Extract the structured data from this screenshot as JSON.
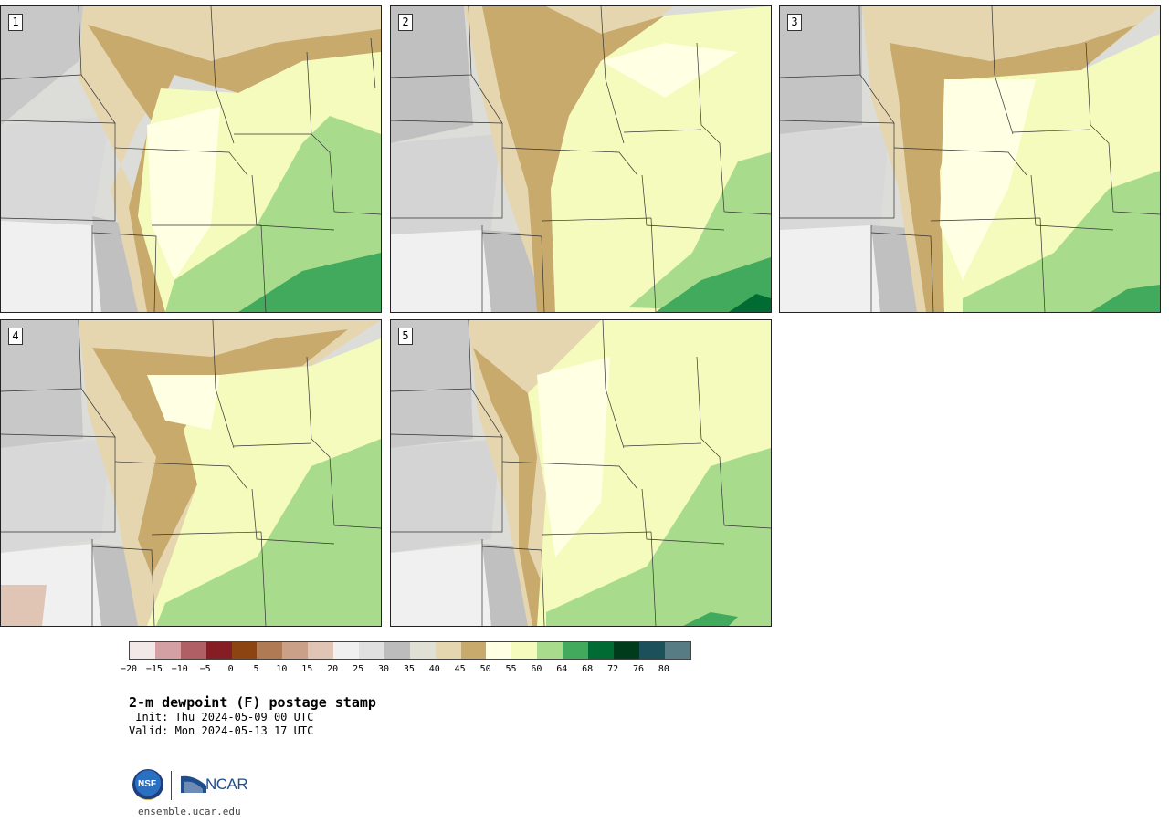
{
  "panels": [
    {
      "label": "1"
    },
    {
      "label": "2"
    },
    {
      "label": "3"
    },
    {
      "label": "4"
    },
    {
      "label": "5"
    }
  ],
  "colorbar": {
    "colors": [
      "#f3e8e8",
      "#d4a0a4",
      "#b06064",
      "#861c24",
      "#8c4412",
      "#b07a54",
      "#caa088",
      "#e0c4b4",
      "#f0f0f0",
      "#e0e0e0",
      "#bcbcbc",
      "#e0e0d4",
      "#e6d6b0",
      "#c8aa6c",
      "#ffffe4",
      "#f4fbbc",
      "#a8dc8c",
      "#42aa5c",
      "#006c34",
      "#003c1c",
      "#1c505a",
      "#587c84"
    ],
    "tick_labels": [
      "−20",
      "−15",
      "−10",
      "−5",
      "0",
      "5",
      "10",
      "15",
      "20",
      "25",
      "30",
      "35",
      "40",
      "45",
      "50",
      "55",
      "60",
      "64",
      "68",
      "72",
      "76",
      "80"
    ]
  },
  "title": "2-m dewpoint (F) postage stamp",
  "init": " Init: Thu 2024-05-09 00 UTC",
  "valid": "Valid: Mon 2024-05-13 17 UTC",
  "logos": {
    "nsf": "NSF",
    "ncar": "NCAR"
  },
  "url": "ensemble.ucar.edu"
}
